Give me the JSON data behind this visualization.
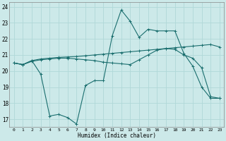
{
  "xlabel": "Humidex (Indice chaleur)",
  "xlim": [
    -0.5,
    23.5
  ],
  "ylim": [
    16.5,
    24.3
  ],
  "yticks": [
    17,
    18,
    19,
    20,
    21,
    22,
    23,
    24
  ],
  "xticks": [
    0,
    1,
    2,
    3,
    4,
    5,
    6,
    7,
    8,
    9,
    10,
    11,
    12,
    13,
    14,
    15,
    16,
    17,
    18,
    19,
    20,
    21,
    22,
    23
  ],
  "bg_color": "#cce9e9",
  "line_color": "#1a6e6e",
  "grid_color": "#b0d8d8",
  "line1_x": [
    0,
    1,
    2,
    3,
    4,
    5,
    6,
    7,
    8,
    9,
    10,
    11,
    12,
    13,
    14,
    15,
    16,
    17,
    18,
    19,
    20,
    21,
    22,
    23
  ],
  "line1_y": [
    20.5,
    20.4,
    20.65,
    20.75,
    20.8,
    20.85,
    20.88,
    20.9,
    20.95,
    21.0,
    21.05,
    21.1,
    21.15,
    21.2,
    21.25,
    21.3,
    21.35,
    21.4,
    21.45,
    21.5,
    21.55,
    21.6,
    21.65,
    21.5
  ],
  "line2_x": [
    0,
    1,
    2,
    3,
    4,
    5,
    6,
    7,
    8,
    9,
    10,
    11,
    12,
    13,
    14,
    15,
    16,
    17,
    18,
    19,
    20,
    21,
    22,
    23
  ],
  "line2_y": [
    20.5,
    20.4,
    20.65,
    19.8,
    17.2,
    17.3,
    17.1,
    16.7,
    19.1,
    19.4,
    19.4,
    22.2,
    23.8,
    23.1,
    22.1,
    22.6,
    22.5,
    22.5,
    22.5,
    21.1,
    20.3,
    19.0,
    18.3,
    18.3
  ],
  "line3_x": [
    0,
    1,
    2,
    3,
    4,
    5,
    6,
    7,
    8,
    9,
    10,
    11,
    12,
    13,
    14,
    15,
    16,
    17,
    18,
    19,
    20,
    21,
    22,
    23
  ],
  "line3_y": [
    20.5,
    20.4,
    20.6,
    20.7,
    20.75,
    20.8,
    20.8,
    20.75,
    20.7,
    20.65,
    20.55,
    20.5,
    20.45,
    20.4,
    20.7,
    21.0,
    21.3,
    21.4,
    21.35,
    21.0,
    20.8,
    20.2,
    18.4,
    18.3
  ]
}
